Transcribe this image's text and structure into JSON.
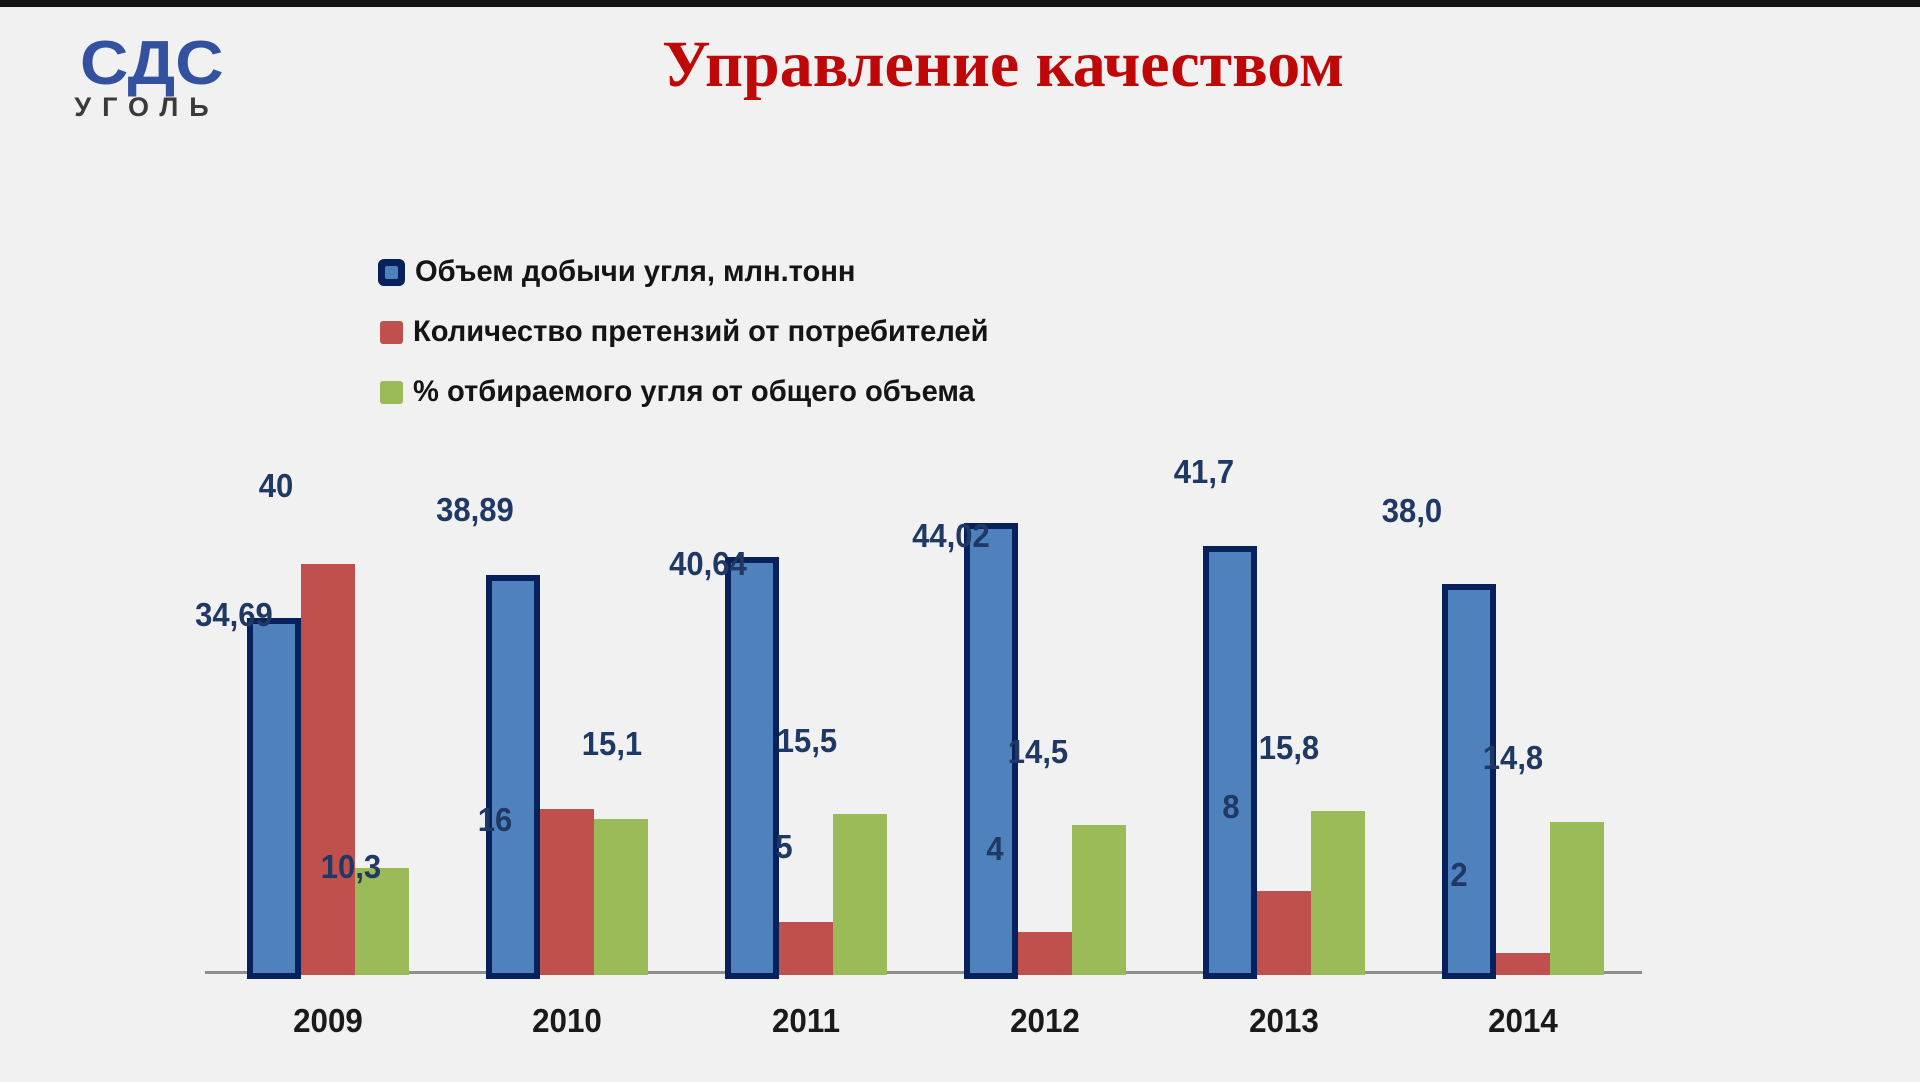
{
  "logo": {
    "line1": "СДС",
    "line2": "уголь"
  },
  "title": "Управление качеством",
  "legend": {
    "items": [
      {
        "label": "Объем добычи угля, млн.тонн"
      },
      {
        "label": "Количество претензий от потребителей"
      },
      {
        "label": "% отбираемого угля от общего объема"
      }
    ]
  },
  "colors": {
    "background": "#f1f1f1",
    "title": "#c00707",
    "logo_blue": "#34519f",
    "logo_gray": "#3a3a38",
    "volume_fill": "#4f82bc",
    "volume_border": "#06215c",
    "claims_fill": "#c0504d",
    "percent_fill": "#9bbb59",
    "data_label": "#1f3864",
    "axis_line": "#8f8f8f"
  },
  "chart_data": {
    "type": "bar",
    "categories": [
      "2009",
      "2010",
      "2011",
      "2012",
      "2013",
      "2014"
    ],
    "series": [
      {
        "name": "Объем добычи угля, млн.тонн",
        "key": "volume",
        "color": "#4f82bc",
        "border_color": "#06215c",
        "values": [
          34.69,
          38.89,
          40.64,
          44.02,
          41.7,
          38.0
        ],
        "labels": [
          "34,69",
          "38,89",
          "40,64",
          "44,02",
          "41,7",
          "38,0"
        ]
      },
      {
        "name": "Количество претензий от потребителей",
        "key": "claims",
        "color": "#c0504d",
        "values": [
          40,
          16,
          5,
          4,
          8,
          2
        ],
        "labels": [
          "40",
          "16",
          "5",
          "4",
          "8",
          "2"
        ]
      },
      {
        "name": "% отбираемого угля от общего объема",
        "key": "percent",
        "color": "#9bbb59",
        "values": [
          10.3,
          15.1,
          15.5,
          14.5,
          15.8,
          14.8
        ],
        "labels": [
          "10,3",
          "15,1",
          "15,5",
          "14,5",
          "15,8",
          "14,8"
        ]
      }
    ],
    "ylim": [
      0,
      45
    ],
    "value_axis_visible": false,
    "gridlines": false,
    "legend_position": "top-left",
    "data_labels": true
  }
}
